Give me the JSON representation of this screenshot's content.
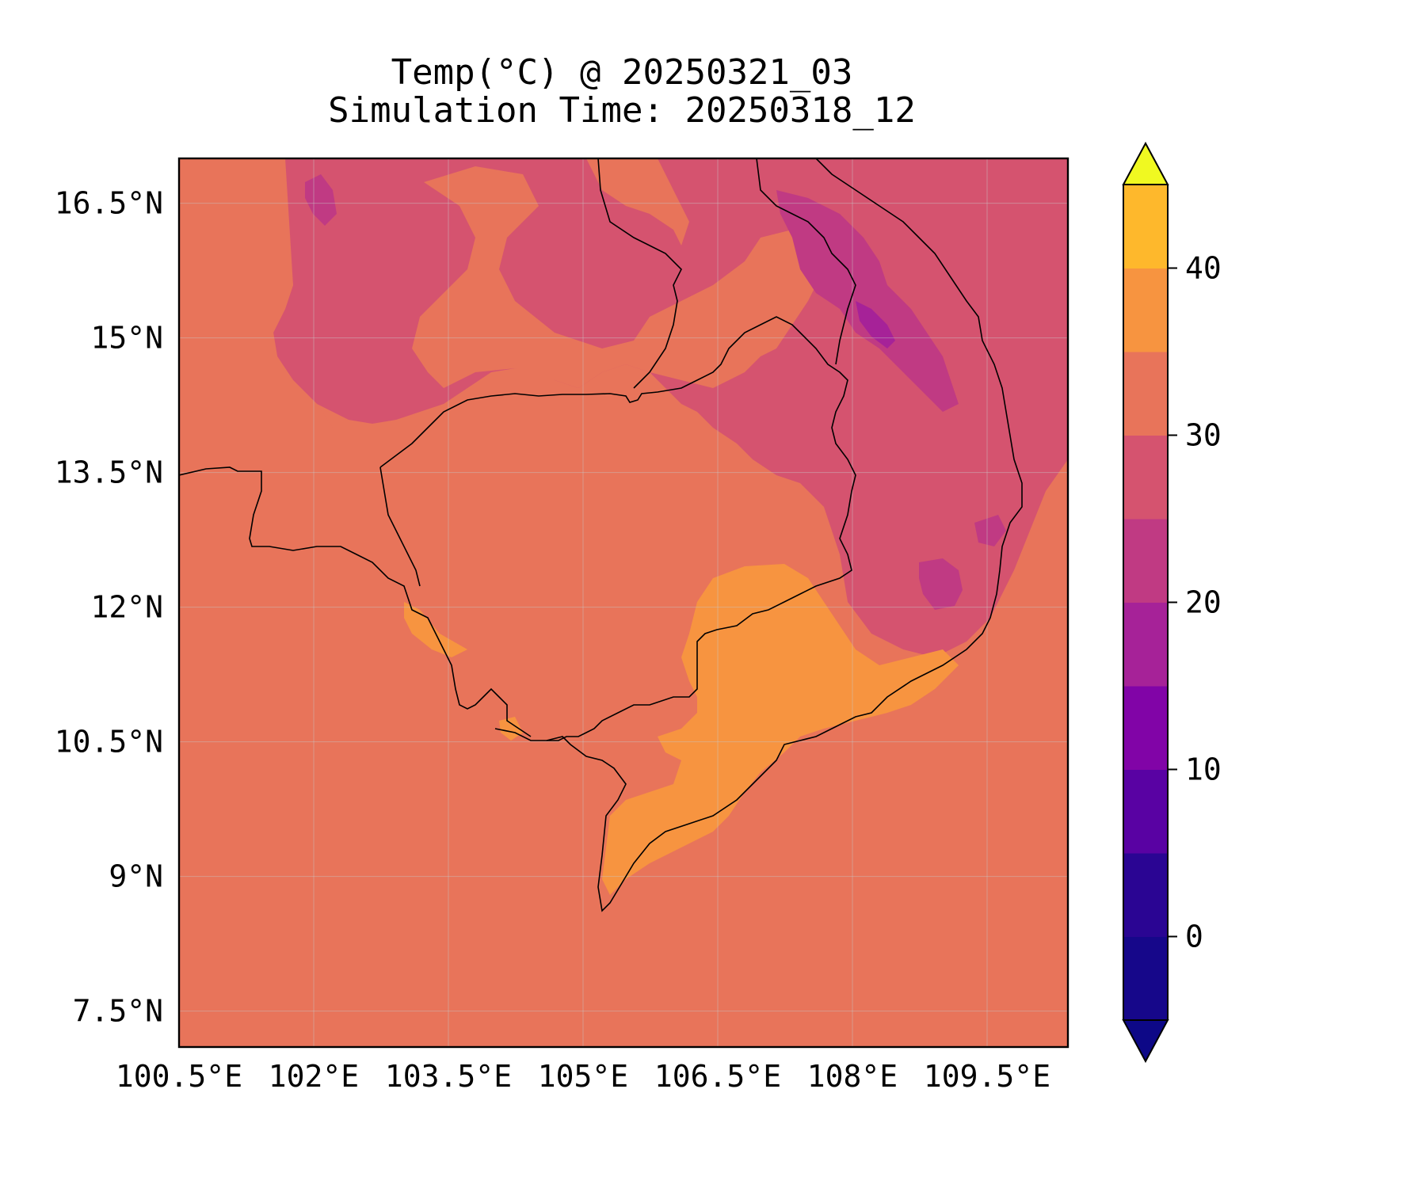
{
  "title": {
    "line1": "Temp(°C) @ 20250321_03",
    "line2": "Simulation Time: 20250318_12"
  },
  "map": {
    "region": "Cambodia / southern Vietnam / southern Laos & eastern Thailand",
    "background_color": "#e8745a",
    "x_ticks": [
      "100.5°E",
      "102°E",
      "103.5°E",
      "105°E",
      "106.5°E",
      "108°E",
      "109.5°E"
    ],
    "y_ticks": [
      "16.5°N",
      "15°N",
      "13.5°N",
      "12°N",
      "10.5°N",
      "9°N",
      "7.5°N"
    ],
    "lon_range": [
      100.5,
      110.4
    ],
    "lat_range": [
      7.1,
      17.0
    ],
    "grid": true
  },
  "colorbar": {
    "colormap": "plasma",
    "levels": [
      -5,
      0,
      5,
      10,
      15,
      20,
      25,
      30,
      35,
      40,
      45
    ],
    "extend": "both",
    "tick_values": [
      0,
      10,
      20,
      30,
      40
    ],
    "tick_labels": [
      "0",
      "10",
      "20",
      "30",
      "40"
    ],
    "colors": [
      "#16078a",
      "#2a0593",
      "#5902a3",
      "#8104a7",
      "#a62298",
      "#c03a83",
      "#d5536f",
      "#e8745a",
      "#f79440",
      "#feb82c",
      "#f0f921"
    ],
    "under_color": "#0d0887",
    "over_color": "#f0f921"
  }
}
